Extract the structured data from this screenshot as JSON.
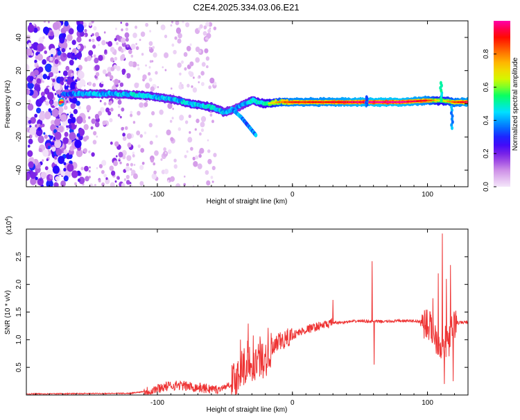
{
  "title": "C2E4.2025.334.03.06.E21",
  "chart_data": [
    {
      "type": "heatmap",
      "xlabel": "Height of straight line (km)",
      "ylabel": "Frequency (Hz)",
      "xlim": [
        -197,
        130
      ],
      "ylim": [
        -50,
        50
      ],
      "xticks": [
        -100,
        0,
        100
      ],
      "yticks": [
        -40,
        -20,
        0,
        20,
        40
      ],
      "colorbar": {
        "label": "Normalized spectral amplitude",
        "range": [
          0,
          1
        ],
        "ticks": [
          "0.0",
          "0.2",
          "0.4",
          "0.6",
          "0.8"
        ],
        "colors": [
          "#f4e6fa",
          "#d49ae8",
          "#8a2be2",
          "#2b00ff",
          "#0077ff",
          "#00e5ff",
          "#00ff66",
          "#ccff00",
          "#ffcc00",
          "#ff6a00",
          "#ff0000",
          "#ff00aa"
        ]
      },
      "ridge": [
        {
          "x": -170,
          "f": 6,
          "a": 0.35
        },
        {
          "x": -150,
          "f": 6,
          "a": 0.45
        },
        {
          "x": -130,
          "f": 6,
          "a": 0.45
        },
        {
          "x": -110,
          "f": 5,
          "a": 0.5
        },
        {
          "x": -90,
          "f": 3,
          "a": 0.45
        },
        {
          "x": -75,
          "f": 0,
          "a": 0.5
        },
        {
          "x": -60,
          "f": -2,
          "a": 0.5
        },
        {
          "x": -50,
          "f": -5,
          "a": 0.45
        },
        {
          "x": -40,
          "f": -2,
          "a": 0.4
        },
        {
          "x": -30,
          "f": 2,
          "a": 0.5
        },
        {
          "x": -20,
          "f": 0,
          "a": 0.55
        },
        {
          "x": -10,
          "f": 1,
          "a": 0.75
        },
        {
          "x": 0,
          "f": 1,
          "a": 0.85
        },
        {
          "x": 20,
          "f": 1,
          "a": 0.85
        },
        {
          "x": 40,
          "f": 1,
          "a": 0.9
        },
        {
          "x": 60,
          "f": 1,
          "a": 0.95
        },
        {
          "x": 80,
          "f": 1,
          "a": 0.95
        },
        {
          "x": 100,
          "f": 2,
          "a": 0.85
        },
        {
          "x": 110,
          "f": 2,
          "a": 0.6
        },
        {
          "x": 120,
          "f": 1,
          "a": 0.8
        },
        {
          "x": 130,
          "f": 1,
          "a": 0.9
        }
      ],
      "branches": [
        {
          "x": -45,
          "f": -3
        },
        {
          "x": -38,
          "f": -8
        },
        {
          "x": -34,
          "f": -12
        },
        {
          "x": -30,
          "f": -16
        },
        {
          "x": -27,
          "f": -19
        }
      ]
    },
    {
      "type": "line",
      "xlabel": "Height of straight line (km)",
      "ylabel": "SNR (10 * v/v)",
      "multiplier": "(x10",
      "multiplier_exp": "4",
      "multiplier_close": ")",
      "xlim": [
        -197,
        130
      ],
      "ylim": [
        0,
        3.0
      ],
      "xticks": [
        -100,
        0,
        100
      ],
      "yticks": [
        0.5,
        1.0,
        1.5,
        2.0,
        2.5
      ],
      "color": "#ee3333",
      "envelope": [
        [
          -197,
          0.02
        ],
        [
          -120,
          0.03
        ],
        [
          -105,
          0.08
        ],
        [
          -95,
          0.15
        ],
        [
          -85,
          0.18
        ],
        [
          -75,
          0.15
        ],
        [
          -65,
          0.12
        ],
        [
          -55,
          0.1
        ],
        [
          -45,
          0.2
        ],
        [
          -38,
          0.45
        ],
        [
          -32,
          0.55
        ],
        [
          -26,
          0.6
        ],
        [
          -20,
          0.65
        ],
        [
          -15,
          0.8
        ],
        [
          -10,
          0.95
        ],
        [
          -5,
          1.0
        ],
        [
          0,
          1.08
        ],
        [
          10,
          1.18
        ],
        [
          20,
          1.25
        ],
        [
          30,
          1.3
        ],
        [
          40,
          1.32
        ],
        [
          50,
          1.34
        ],
        [
          60,
          1.33
        ],
        [
          70,
          1.33
        ],
        [
          80,
          1.34
        ],
        [
          90,
          1.34
        ],
        [
          100,
          1.3
        ],
        [
          110,
          0.9
        ],
        [
          116,
          1.0
        ],
        [
          120,
          1.3
        ],
        [
          130,
          1.32
        ]
      ],
      "spikes": [
        {
          "x": 30,
          "y": 1.72
        },
        {
          "x": 59,
          "y": 2.42
        },
        {
          "x": 60.5,
          "y": 0.55
        },
        {
          "x": 98,
          "y": 1.45
        },
        {
          "x": 104,
          "y": 1.75
        },
        {
          "x": 108,
          "y": 2.2
        },
        {
          "x": 111,
          "y": 2.92
        },
        {
          "x": 112.5,
          "y": 0.2
        },
        {
          "x": 114,
          "y": 2.1
        },
        {
          "x": 117,
          "y": 2.35
        },
        {
          "x": 119,
          "y": 0.25
        }
      ]
    }
  ]
}
